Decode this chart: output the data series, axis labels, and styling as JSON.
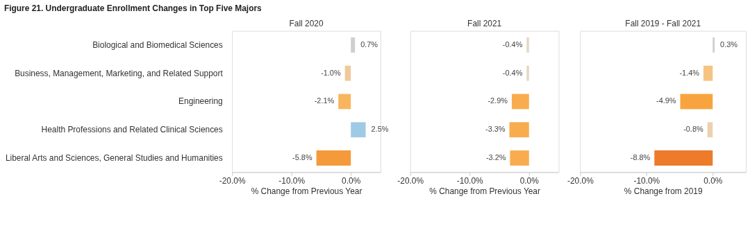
{
  "chart_data": [
    {
      "type": "bar",
      "orientation": "horizontal",
      "title": "Fall 2020",
      "xlabel": "% Change from Previous Year",
      "annotations": [
        "Figure 21. Undergraduate Enrollment Changes in Top Five Majors"
      ],
      "categories": [
        "Biological and Biomedical Sciences",
        "Business, Management, Marketing, and Related Support",
        "Engineering",
        "Health Professions and Related Clinical Sciences",
        "Liberal Arts and Sciences, General Studies and Humanities"
      ],
      "values": [
        0.7,
        -1.0,
        -2.1,
        2.5,
        -5.8
      ],
      "colors": [
        "#cfcfcf",
        "#efc99b",
        "#f8b55e",
        "#9fcae6",
        "#f49a3a"
      ],
      "value_labels": [
        "0.7%",
        "-1.0%",
        "-2.1%",
        "2.5%",
        "-5.8%"
      ],
      "xlim": [
        -20,
        5
      ],
      "xticks": [
        {
          "value": -20,
          "label": "-20.0%"
        },
        {
          "value": -10,
          "label": "-10.0%"
        },
        {
          "value": 0,
          "label": "0.0%"
        }
      ],
      "grid": false
    },
    {
      "type": "bar",
      "orientation": "horizontal",
      "title": "Fall 2021",
      "xlabel": "% Change from Previous Year",
      "categories": [
        "Biological and Biomedical Sciences",
        "Business, Management, Marketing, and Related Support",
        "Engineering",
        "Health Professions and Related Clinical Sciences",
        "Liberal Arts and Sciences, General Studies and Humanities"
      ],
      "values": [
        -0.4,
        -0.4,
        -2.9,
        -3.3,
        -3.2
      ],
      "colors": [
        "#e6d6c0",
        "#e6d6c0",
        "#f8ac4e",
        "#f8ac4e",
        "#f8ac4e"
      ],
      "value_labels": [
        "-0.4%",
        "-0.4%",
        "-2.9%",
        "-3.3%",
        "-3.2%"
      ],
      "xlim": [
        -20,
        5
      ],
      "xticks": [
        {
          "value": -20,
          "label": "-20.0%"
        },
        {
          "value": -10,
          "label": "-10.0%"
        },
        {
          "value": 0,
          "label": "0.0%"
        }
      ],
      "tick_labels": "x",
      "grid": false
    },
    {
      "type": "bar",
      "orientation": "horizontal",
      "title": "Fall 2019 - Fall 2021",
      "xlabel": "% Change from 2019",
      "categories": [
        "Biological and Biomedical Sciences",
        "Business, Management, Marketing, and Related Support",
        "Engineering",
        "Health Professions and Related Clinical Sciences",
        "Liberal Arts and Sciences, General Studies and Humanities"
      ],
      "values": [
        0.3,
        -1.4,
        -4.9,
        -0.8,
        -8.8
      ],
      "colors": [
        "#cfcfcf",
        "#f5c483",
        "#f8a43e",
        "#ecd1b0",
        "#ee7b2a"
      ],
      "value_labels": [
        "0.3%",
        "-1.4%",
        "-4.9%",
        "-0.8%",
        "-8.8%"
      ],
      "xlim": [
        -20,
        5
      ],
      "xticks": [
        {
          "value": -20,
          "label": "-20.0%"
        },
        {
          "value": -10,
          "label": "-10.0%"
        },
        {
          "value": 0,
          "label": "0.0%"
        }
      ],
      "tick_labels": "x",
      "grid": false
    }
  ]
}
